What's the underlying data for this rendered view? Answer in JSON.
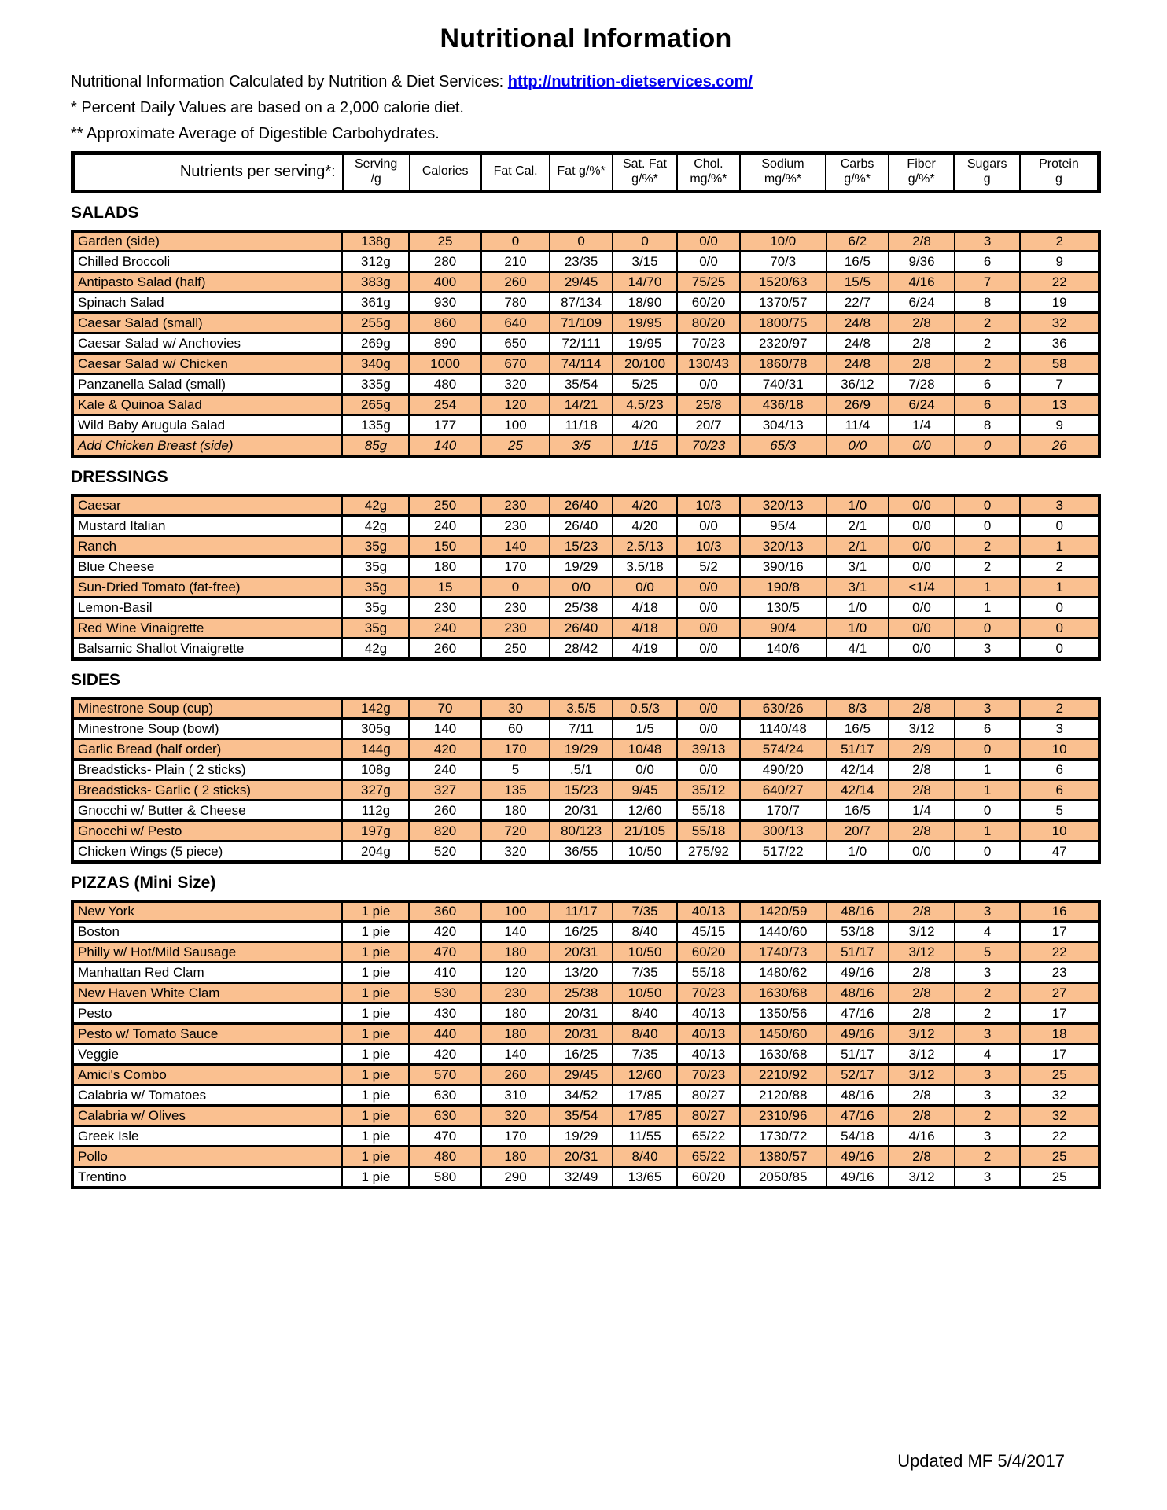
{
  "page": {
    "title": "Nutritional Information",
    "intro_prefix": "Nutritional Information Calculated by Nutrition & Diet Services: ",
    "link_text": "http://nutrition-dietservices.com/",
    "note_daily_values": "* Percent Daily Values are based on a 2,000 calorie diet.",
    "note_carbs": "** Approximate Average of Digestible Carbohydrates.",
    "footer": "Updated MF 5/4/2017"
  },
  "colors": {
    "highlight": "#FAC090",
    "link": "#0000EE",
    "border": "#000000"
  },
  "table": {
    "header": {
      "label": "Nutrients per serving*:",
      "columns": [
        [
          "Serving",
          "/g"
        ],
        [
          "Calories"
        ],
        [
          "Fat Cal."
        ],
        [
          "Fat g/%*"
        ],
        [
          "Sat. Fat",
          "g/%*"
        ],
        [
          "Chol.",
          "mg/%*"
        ],
        [
          "Sodium",
          "mg/%*"
        ],
        [
          "Carbs",
          "g/%*"
        ],
        [
          "Fiber",
          "g/%*"
        ],
        [
          "Sugars",
          "g"
        ],
        [
          "Protein",
          "g"
        ]
      ]
    },
    "sections": [
      {
        "label": "SALADS",
        "rows": [
          {
            "name": "Garden (side)",
            "values": [
              "138g",
              "25",
              "0",
              "0",
              "0",
              "0/0",
              "10/0",
              "6/2",
              "2/8",
              "3",
              "2"
            ]
          },
          {
            "name": "Chilled Broccoli",
            "values": [
              "312g",
              "280",
              "210",
              "23/35",
              "3/15",
              "0/0",
              "70/3",
              "16/5",
              "9/36",
              "6",
              "9"
            ]
          },
          {
            "name": "Antipasto Salad (half)",
            "values": [
              "383g",
              "400",
              "260",
              "29/45",
              "14/70",
              "75/25",
              "1520/63",
              "15/5",
              "4/16",
              "7",
              "22"
            ]
          },
          {
            "name": "Spinach Salad",
            "values": [
              "361g",
              "930",
              "780",
              "87/134",
              "18/90",
              "60/20",
              "1370/57",
              "22/7",
              "6/24",
              "8",
              "19"
            ]
          },
          {
            "name": "Caesar Salad (small)",
            "values": [
              "255g",
              "860",
              "640",
              "71/109",
              "19/95",
              "80/20",
              "1800/75",
              "24/8",
              "2/8",
              "2",
              "32"
            ]
          },
          {
            "name": "Caesar Salad w/ Anchovies",
            "values": [
              "269g",
              "890",
              "650",
              "72/111",
              "19/95",
              "70/23",
              "2320/97",
              "24/8",
              "2/8",
              "2",
              "36"
            ]
          },
          {
            "name": "Caesar Salad w/ Chicken",
            "values": [
              "340g",
              "1000",
              "670",
              "74/114",
              "20/100",
              "130/43",
              "1860/78",
              "24/8",
              "2/8",
              "2",
              "58"
            ]
          },
          {
            "name": "Panzanella Salad (small)",
            "values": [
              "335g",
              "480",
              "320",
              "35/54",
              "5/25",
              "0/0",
              "740/31",
              "36/12",
              "7/28",
              "6",
              "7"
            ]
          },
          {
            "name": "Kale & Quinoa Salad",
            "values": [
              "265g",
              "254",
              "120",
              "14/21",
              "4.5/23",
              "25/8",
              "436/18",
              "26/9",
              "6/24",
              "6",
              "13"
            ]
          },
          {
            "name": "Wild Baby Arugula Salad",
            "values": [
              "135g",
              "177",
              "100",
              "11/18",
              "4/20",
              "20/7",
              "304/13",
              "11/4",
              "1/4",
              "8",
              "9"
            ]
          },
          {
            "name": "Add Chicken Breast (side)",
            "italic": true,
            "values": [
              "85g",
              "140",
              "25",
              "3/5",
              "1/15",
              "70/23",
              "65/3",
              "0/0",
              "0/0",
              "0",
              "26"
            ]
          }
        ]
      },
      {
        "label": "DRESSINGS",
        "rows": [
          {
            "name": "Caesar",
            "values": [
              "42g",
              "250",
              "230",
              "26/40",
              "4/20",
              "10/3",
              "320/13",
              "1/0",
              "0/0",
              "0",
              "3"
            ]
          },
          {
            "name": "Mustard Italian",
            "values": [
              "42g",
              "240",
              "230",
              "26/40",
              "4/20",
              "0/0",
              "95/4",
              "2/1",
              "0/0",
              "0",
              "0"
            ]
          },
          {
            "name": "Ranch",
            "values": [
              "35g",
              "150",
              "140",
              "15/23",
              "2.5/13",
              "10/3",
              "320/13",
              "2/1",
              "0/0",
              "2",
              "1"
            ]
          },
          {
            "name": "Blue Cheese",
            "values": [
              "35g",
              "180",
              "170",
              "19/29",
              "3.5/18",
              "5/2",
              "390/16",
              "3/1",
              "0/0",
              "2",
              "2"
            ]
          },
          {
            "name": "Sun-Dried Tomato (fat-free)",
            "values": [
              "35g",
              "15",
              "0",
              "0/0",
              "0/0",
              "0/0",
              "190/8",
              "3/1",
              "<1/4",
              "1",
              "1"
            ]
          },
          {
            "name": "Lemon-Basil",
            "values": [
              "35g",
              "230",
              "230",
              "25/38",
              "4/18",
              "0/0",
              "130/5",
              "1/0",
              "0/0",
              "1",
              "0"
            ]
          },
          {
            "name": "Red Wine Vinaigrette",
            "values": [
              "35g",
              "240",
              "230",
              "26/40",
              "4/18",
              "0/0",
              "90/4",
              "1/0",
              "0/0",
              "0",
              "0"
            ]
          },
          {
            "name": "Balsamic Shallot Vinaigrette",
            "values": [
              "42g",
              "260",
              "250",
              "28/42",
              "4/19",
              "0/0",
              "140/6",
              "4/1",
              "0/0",
              "3",
              "0"
            ]
          }
        ]
      },
      {
        "label": "SIDES",
        "rows": [
          {
            "name": "Minestrone Soup (cup)",
            "values": [
              "142g",
              "70",
              "30",
              "3.5/5",
              "0.5/3",
              "0/0",
              "630/26",
              "8/3",
              "2/8",
              "3",
              "2"
            ]
          },
          {
            "name": "Minestrone Soup (bowl)",
            "values": [
              "305g",
              "140",
              "60",
              "7/11",
              "1/5",
              "0/0",
              "1140/48",
              "16/5",
              "3/12",
              "6",
              "3"
            ]
          },
          {
            "name": "Garlic Bread (half order)",
            "values": [
              "144g",
              "420",
              "170",
              "19/29",
              "10/48",
              "39/13",
              "574/24",
              "51/17",
              "2/9",
              "0",
              "10"
            ]
          },
          {
            "name": "Breadsticks- Plain ( 2 sticks)",
            "values": [
              "108g",
              "240",
              "5",
              ".5/1",
              "0/0",
              "0/0",
              "490/20",
              "42/14",
              "2/8",
              "1",
              "6"
            ]
          },
          {
            "name": "Breadsticks- Garlic ( 2 sticks)",
            "values": [
              "327g",
              "327",
              "135",
              "15/23",
              "9/45",
              "35/12",
              "640/27",
              "42/14",
              "2/8",
              "1",
              "6"
            ]
          },
          {
            "name": "Gnocchi w/ Butter & Cheese",
            "values": [
              "112g",
              "260",
              "180",
              "20/31",
              "12/60",
              "55/18",
              "170/7",
              "16/5",
              "1/4",
              "0",
              "5"
            ]
          },
          {
            "name": "Gnocchi w/ Pesto",
            "values": [
              "197g",
              "820",
              "720",
              "80/123",
              "21/105",
              "55/18",
              "300/13",
              "20/7",
              "2/8",
              "1",
              "10"
            ]
          },
          {
            "name": "Chicken Wings (5 piece)",
            "values": [
              "204g",
              "520",
              "320",
              "36/55",
              "10/50",
              "275/92",
              "517/22",
              "1/0",
              "0/0",
              "0",
              "47"
            ]
          }
        ]
      },
      {
        "label": "PIZZAS  (Mini Size)",
        "rows": [
          {
            "name": "New York",
            "values": [
              "1 pie",
              "360",
              "100",
              "11/17",
              "7/35",
              "40/13",
              "1420/59",
              "48/16",
              "2/8",
              "3",
              "16"
            ]
          },
          {
            "name": "Boston",
            "values": [
              "1 pie",
              "420",
              "140",
              "16/25",
              "8/40",
              "45/15",
              "1440/60",
              "53/18",
              "3/12",
              "4",
              "17"
            ]
          },
          {
            "name": "Philly w/ Hot/Mild Sausage",
            "values": [
              "1 pie",
              "470",
              "180",
              "20/31",
              "10/50",
              "60/20",
              "1740/73",
              "51/17",
              "3/12",
              "5",
              "22"
            ]
          },
          {
            "name": "Manhattan Red Clam",
            "values": [
              "1 pie",
              "410",
              "120",
              "13/20",
              "7/35",
              "55/18",
              "1480/62",
              "49/16",
              "2/8",
              "3",
              "23"
            ]
          },
          {
            "name": "New Haven White Clam",
            "values": [
              "1 pie",
              "530",
              "230",
              "25/38",
              "10/50",
              "70/23",
              "1630/68",
              "48/16",
              "2/8",
              "2",
              "27"
            ]
          },
          {
            "name": "Pesto",
            "values": [
              "1 pie",
              "430",
              "180",
              "20/31",
              "8/40",
              "40/13",
              "1350/56",
              "47/16",
              "2/8",
              "2",
              "17"
            ]
          },
          {
            "name": "Pesto w/ Tomato Sauce",
            "values": [
              "1 pie",
              "440",
              "180",
              "20/31",
              "8/40",
              "40/13",
              "1450/60",
              "49/16",
              "3/12",
              "3",
              "18"
            ]
          },
          {
            "name": "Veggie",
            "values": [
              "1 pie",
              "420",
              "140",
              "16/25",
              "7/35",
              "40/13",
              "1630/68",
              "51/17",
              "3/12",
              "4",
              "17"
            ]
          },
          {
            "name": "Amici's Combo",
            "values": [
              "1 pie",
              "570",
              "260",
              "29/45",
              "12/60",
              "70/23",
              "2210/92",
              "52/17",
              "3/12",
              "3",
              "25"
            ]
          },
          {
            "name": "Calabria w/ Tomatoes",
            "values": [
              "1 pie",
              "630",
              "310",
              "34/52",
              "17/85",
              "80/27",
              "2120/88",
              "48/16",
              "2/8",
              "3",
              "32"
            ]
          },
          {
            "name": "Calabria w/ Olives",
            "values": [
              "1 pie",
              "630",
              "320",
              "35/54",
              "17/85",
              "80/27",
              "2310/96",
              "47/16",
              "2/8",
              "2",
              "32"
            ]
          },
          {
            "name": "Greek Isle",
            "values": [
              "1 pie",
              "470",
              "170",
              "19/29",
              "11/55",
              "65/22",
              "1730/72",
              "54/18",
              "4/16",
              "3",
              "22"
            ]
          },
          {
            "name": "Pollo",
            "values": [
              "1 pie",
              "480",
              "180",
              "20/31",
              "8/40",
              "65/22",
              "1380/57",
              "49/16",
              "2/8",
              "2",
              "25"
            ]
          },
          {
            "name": "Trentino",
            "values": [
              "1 pie",
              "580",
              "290",
              "32/49",
              "13/65",
              "60/20",
              "2050/85",
              "49/16",
              "3/12",
              "3",
              "25"
            ]
          }
        ]
      }
    ]
  }
}
